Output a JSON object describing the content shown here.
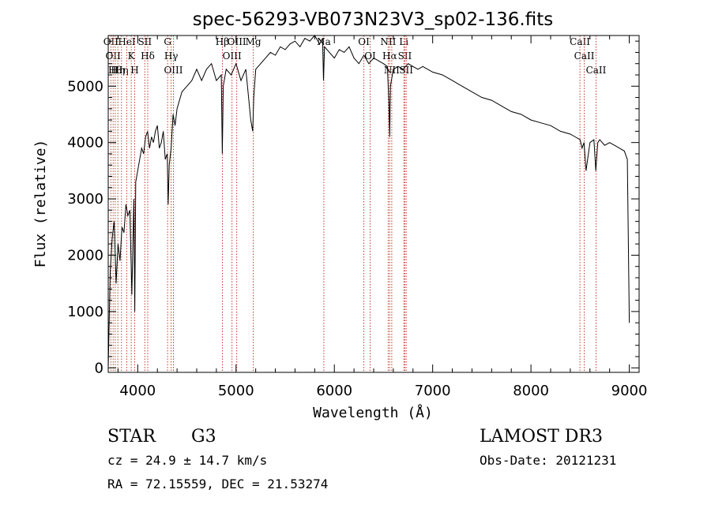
{
  "chart_data": {
    "type": "line",
    "title": "spec-56293-VB073N23V3_sp02-136.fits",
    "xlabel": "Wavelength (Å)",
    "ylabel": "Flux (relative)",
    "xlim": [
      3700,
      9100
    ],
    "ylim": [
      -80,
      5900
    ],
    "xticks": [
      4000,
      5000,
      6000,
      7000,
      8000,
      9000
    ],
    "yticks": [
      0,
      1000,
      2000,
      3000,
      4000,
      5000
    ],
    "grid": false,
    "series": [
      {
        "name": "flux",
        "x": [
          3700,
          3720,
          3740,
          3760,
          3780,
          3800,
          3820,
          3840,
          3860,
          3880,
          3900,
          3920,
          3940,
          3960,
          3970,
          3980,
          4000,
          4020,
          4040,
          4060,
          4080,
          4100,
          4120,
          4140,
          4160,
          4180,
          4200,
          4220,
          4240,
          4260,
          4280,
          4300,
          4310,
          4320,
          4340,
          4360,
          4380,
          4400,
          4450,
          4500,
          4550,
          4600,
          4650,
          4700,
          4750,
          4800,
          4850,
          4860,
          4870,
          4900,
          4950,
          5000,
          5050,
          5100,
          5150,
          5170,
          5180,
          5200,
          5250,
          5300,
          5350,
          5400,
          5450,
          5500,
          5550,
          5600,
          5650,
          5700,
          5750,
          5800,
          5850,
          5880,
          5890,
          5900,
          5950,
          6000,
          6050,
          6100,
          6150,
          6200,
          6250,
          6300,
          6350,
          6400,
          6450,
          6500,
          6540,
          6555,
          6563,
          6570,
          6600,
          6650,
          6700,
          6750,
          6800,
          6850,
          6900,
          6950,
          7000,
          7100,
          7200,
          7300,
          7400,
          7500,
          7600,
          7700,
          7800,
          7900,
          8000,
          8100,
          8200,
          8300,
          8400,
          8450,
          8500,
          8520,
          8540,
          8560,
          8600,
          8640,
          8660,
          8680,
          8700,
          8750,
          8800,
          8850,
          8900,
          8950,
          8980,
          9000
        ],
        "y": [
          0,
          1700,
          2300,
          2600,
          1500,
          2200,
          1900,
          2500,
          2400,
          2900,
          2700,
          2800,
          1300,
          3000,
          1000,
          3300,
          3500,
          3700,
          3900,
          3800,
          4100,
          4200,
          3900,
          4100,
          4000,
          4200,
          4300,
          3900,
          4000,
          4200,
          3700,
          3800,
          2900,
          3600,
          3900,
          4500,
          4300,
          4600,
          4900,
          5000,
          5100,
          5300,
          5100,
          5300,
          5400,
          5100,
          5200,
          3800,
          5000,
          5300,
          5200,
          5400,
          5100,
          5300,
          4400,
          4200,
          4800,
          5300,
          5400,
          5500,
          5600,
          5550,
          5700,
          5650,
          5750,
          5800,
          5700,
          5850,
          5800,
          5900,
          5750,
          5850,
          5100,
          5700,
          5600,
          5500,
          5650,
          5600,
          5700,
          5500,
          5400,
          5550,
          5400,
          5500,
          5450,
          5400,
          5350,
          4700,
          4100,
          5000,
          5300,
          5350,
          5300,
          5400,
          5350,
          5300,
          5350,
          5300,
          5250,
          5200,
          5100,
          5000,
          4900,
          4800,
          4750,
          4650,
          4550,
          4500,
          4400,
          4350,
          4300,
          4200,
          4150,
          4100,
          4050,
          3900,
          4000,
          3500,
          4000,
          4050,
          3500,
          4000,
          4050,
          3950,
          4000,
          3950,
          3900,
          3850,
          3700,
          800
        ]
      }
    ],
    "line_markers": [
      {
        "x": 3727,
        "label": "OII"
      },
      {
        "x": 3750,
        "label": "OII"
      },
      {
        "x": 3771,
        "label": "Hθ"
      },
      {
        "x": 3798,
        "label": "Hη"
      },
      {
        "x": 3835,
        "label": "Hη"
      },
      {
        "x": 3889,
        "label": "HeI"
      },
      {
        "x": 3934,
        "label": "K"
      },
      {
        "x": 3969,
        "label": "H"
      },
      {
        "x": 4072,
        "label": "SII"
      },
      {
        "x": 4102,
        "label": "Hδ"
      },
      {
        "x": 4304,
        "label": "G"
      },
      {
        "x": 4340,
        "label": "Hγ"
      },
      {
        "x": 4363,
        "label": "OIII"
      },
      {
        "x": 4861,
        "label": "Hβ"
      },
      {
        "x": 4959,
        "label": "OIII"
      },
      {
        "x": 5007,
        "label": "OIII"
      },
      {
        "x": 5175,
        "label": "Mg"
      },
      {
        "x": 5893,
        "label": "Na"
      },
      {
        "x": 6300,
        "label": "OI"
      },
      {
        "x": 6364,
        "label": "OI"
      },
      {
        "x": 6548,
        "label": "NII"
      },
      {
        "x": 6563,
        "label": "Hα"
      },
      {
        "x": 6584,
        "label": "NII"
      },
      {
        "x": 6707,
        "label": "Li"
      },
      {
        "x": 6717,
        "label": "SII"
      },
      {
        "x": 6731,
        "label": "SII"
      },
      {
        "x": 8498,
        "label": "CaII"
      },
      {
        "x": 8542,
        "label": "CaII"
      },
      {
        "x": 8662,
        "label": "CaII"
      }
    ]
  },
  "info": {
    "class_label": "STAR",
    "subclass": "G3",
    "survey": "LAMOST DR3",
    "cz": "cz = 24.9 ± 14.7 km/s",
    "obs_date": "Obs-Date: 20121231",
    "coords": "RA =  72.15559, DEC =  21.53274"
  }
}
